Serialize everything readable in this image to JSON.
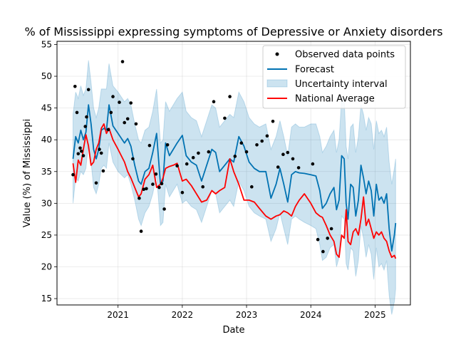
{
  "chart_data": {
    "type": "line",
    "title": "% of Mississippi expressing symptoms of Depressive or Anxiety disorders",
    "xlabel": "Date",
    "ylabel": "Value (%) of Mississippi",
    "xlim": [
      2020.05,
      2025.55
    ],
    "ylim": [
      14,
      55.5
    ],
    "xticks": [
      2021,
      2022,
      2023,
      2024,
      2025
    ],
    "xtick_labels": [
      "2021",
      "2022",
      "2023",
      "2024",
      "2025"
    ],
    "yticks": [
      15,
      20,
      25,
      30,
      35,
      40,
      45,
      50,
      55
    ],
    "ytick_labels": [
      "15",
      "20",
      "25",
      "30",
      "35",
      "40",
      "45",
      "50",
      "55"
    ],
    "grid": true,
    "legend_position": "upper right",
    "legend": [
      "Observed data points",
      "Forecast",
      "Uncertainty interval",
      "National Average"
    ],
    "colors": {
      "observed": "#000000",
      "forecast": "#0072b2",
      "uncertainty": "#0072b2",
      "national": "#ff0000"
    },
    "series": [
      {
        "name": "Observed data points",
        "kind": "scatter",
        "x": [
          2020.3,
          2020.33,
          2020.36,
          2020.38,
          2020.41,
          2020.43,
          2020.46,
          2020.49,
          2020.51,
          2020.54,
          2020.66,
          2020.71,
          2020.74,
          2020.77,
          2020.85,
          2020.89,
          2020.92,
          2021.02,
          2021.07,
          2021.1,
          2021.15,
          2021.2,
          2021.23,
          2021.28,
          2021.33,
          2021.36,
          2021.4,
          2021.44,
          2021.49,
          2021.54,
          2021.59,
          2021.64,
          2021.68,
          2021.72,
          2021.77,
          2021.92,
          2022.0,
          2022.07,
          2022.17,
          2022.25,
          2022.32,
          2022.41,
          2022.49,
          2022.66,
          2022.74,
          2022.82,
          2022.92,
          2023.0,
          2023.08,
          2023.16,
          2023.24,
          2023.32,
          2023.41,
          2023.49,
          2023.57,
          2023.64,
          2023.72,
          2023.81,
          2024.03,
          2024.11,
          2024.19,
          2024.26,
          2024.32
        ],
        "y": [
          34.5,
          48.4,
          44.3,
          37.8,
          38.7,
          38.2,
          37.5,
          42.1,
          43.6,
          47.9,
          33.2,
          38.5,
          37.9,
          35.1,
          41.6,
          44.3,
          46.8,
          45.9,
          52.3,
          42.7,
          43.3,
          45.8,
          37.0,
          42.5,
          30.8,
          25.6,
          32.2,
          32.3,
          39.1,
          33.0,
          34.6,
          32.5,
          33.1,
          29.1,
          39.2,
          35.9,
          31.7,
          36.2,
          37.2,
          37.9,
          32.6,
          38.1,
          46.0,
          43.4,
          46.8,
          37.4,
          39.5,
          38.1,
          32.6,
          39.2,
          39.8,
          40.6,
          42.9,
          35.7,
          37.7,
          38.0,
          37.0,
          35.6,
          36.2,
          24.3,
          22.4,
          24.5,
          26.0
        ]
      },
      {
        "name": "Forecast",
        "kind": "line",
        "x": [
          2020.3,
          2020.34,
          2020.38,
          2020.42,
          2020.46,
          2020.5,
          2020.54,
          2020.58,
          2020.62,
          2020.66,
          2020.7,
          2020.74,
          2020.78,
          2020.82,
          2020.86,
          2020.92,
          2021.0,
          2021.1,
          2021.15,
          2021.2,
          2021.26,
          2021.32,
          2021.36,
          2021.42,
          2021.48,
          2021.54,
          2021.6,
          2021.66,
          2021.7,
          2021.74,
          2021.8,
          2021.86,
          2021.92,
          2022.0,
          2022.06,
          2022.14,
          2022.22,
          2022.3,
          2022.38,
          2022.46,
          2022.52,
          2022.58,
          2022.66,
          2022.74,
          2022.8,
          2022.88,
          2022.96,
          2023.04,
          2023.12,
          2023.2,
          2023.3,
          2023.38,
          2023.46,
          2023.52,
          2023.58,
          2023.64,
          2023.7,
          2023.76,
          2023.82,
          2023.9,
          2024.0,
          2024.08,
          2024.14,
          2024.18,
          2024.24,
          2024.3,
          2024.36,
          2024.4,
          2024.44,
          2024.48,
          2024.52,
          2024.55,
          2024.58,
          2024.62,
          2024.66,
          2024.7,
          2024.74,
          2024.78,
          2024.82,
          2024.86,
          2024.9,
          2024.94,
          2024.98,
          2025.02,
          2025.06,
          2025.1,
          2025.14,
          2025.18,
          2025.22,
          2025.26,
          2025.3,
          2025.32
        ],
        "y": [
          37.0,
          40.5,
          39.5,
          41.5,
          40.0,
          41.2,
          45.5,
          42.5,
          38.5,
          37.0,
          38.5,
          41.5,
          41.8,
          41.5,
          45.5,
          42.2,
          41.0,
          39.5,
          40.2,
          39.0,
          36.0,
          33.5,
          33.0,
          35.0,
          35.5,
          38.0,
          41.0,
          33.0,
          33.5,
          39.5,
          37.5,
          38.5,
          39.5,
          40.7,
          37.5,
          36.5,
          36.0,
          33.5,
          36.0,
          38.5,
          38.0,
          35.0,
          36.0,
          37.0,
          36.5,
          40.5,
          39.0,
          36.5,
          35.5,
          35.0,
          35.0,
          30.8,
          33.0,
          35.5,
          33.0,
          30.2,
          34.5,
          35.0,
          34.8,
          34.7,
          34.5,
          34.3,
          32.0,
          29.2,
          30.0,
          31.5,
          32.5,
          29.0,
          30.5,
          37.5,
          37.0,
          30.0,
          27.5,
          33.0,
          32.5,
          28.0,
          30.5,
          36.0,
          34.0,
          31.5,
          33.5,
          32.0,
          28.0,
          33.0,
          30.5,
          31.0,
          30.0,
          31.5,
          26.0,
          22.5,
          25.0,
          26.9
        ]
      },
      {
        "name": "Uncertainty interval",
        "kind": "band",
        "x": [
          2020.3,
          2020.34,
          2020.38,
          2020.42,
          2020.46,
          2020.5,
          2020.54,
          2020.58,
          2020.62,
          2020.66,
          2020.7,
          2020.74,
          2020.78,
          2020.82,
          2020.86,
          2020.92,
          2021.0,
          2021.1,
          2021.15,
          2021.2,
          2021.26,
          2021.32,
          2021.36,
          2021.42,
          2021.48,
          2021.54,
          2021.6,
          2021.66,
          2021.7,
          2021.74,
          2021.8,
          2021.86,
          2021.92,
          2022.0,
          2022.06,
          2022.14,
          2022.22,
          2022.3,
          2022.38,
          2022.46,
          2022.52,
          2022.58,
          2022.66,
          2022.74,
          2022.8,
          2022.88,
          2022.96,
          2023.04,
          2023.12,
          2023.2,
          2023.3,
          2023.38,
          2023.46,
          2023.52,
          2023.58,
          2023.64,
          2023.7,
          2023.76,
          2023.82,
          2023.9,
          2024.0,
          2024.08,
          2024.14,
          2024.18,
          2024.24,
          2024.3,
          2024.36,
          2024.4,
          2024.44,
          2024.48,
          2024.52,
          2024.55,
          2024.58,
          2024.62,
          2024.66,
          2024.7,
          2024.74,
          2024.78,
          2024.82,
          2024.86,
          2024.9,
          2024.94,
          2024.98,
          2025.02,
          2025.06,
          2025.1,
          2025.14,
          2025.18,
          2025.22,
          2025.26,
          2025.3,
          2025.32
        ],
        "lower": [
          30.0,
          34.0,
          33.5,
          35.0,
          34.5,
          35.5,
          39.5,
          36.5,
          32.5,
          31.5,
          33.0,
          35.5,
          36.0,
          35.5,
          39.5,
          36.5,
          35.0,
          34.0,
          34.5,
          33.0,
          30.5,
          27.5,
          26.5,
          28.5,
          29.5,
          31.5,
          34.5,
          26.5,
          27.0,
          33.0,
          31.0,
          32.0,
          33.0,
          30.0,
          30.5,
          29.5,
          29.0,
          27.0,
          29.5,
          32.0,
          31.5,
          28.5,
          29.5,
          30.5,
          29.5,
          33.5,
          32.0,
          29.5,
          28.5,
          28.0,
          27.5,
          24.0,
          26.0,
          28.5,
          26.0,
          23.5,
          27.5,
          28.0,
          27.5,
          27.0,
          26.5,
          26.0,
          23.5,
          21.0,
          21.5,
          23.0,
          23.5,
          20.0,
          21.5,
          28.0,
          27.5,
          20.5,
          19.5,
          23.0,
          22.5,
          18.5,
          21.0,
          26.5,
          24.5,
          21.5,
          23.5,
          22.0,
          18.0,
          23.0,
          20.0,
          20.5,
          19.5,
          21.0,
          15.5,
          12.5,
          14.5,
          16.5
        ],
        "upper": [
          44.0,
          47.5,
          46.5,
          48.5,
          47.0,
          48.0,
          52.5,
          49.0,
          45.0,
          43.5,
          45.0,
          48.0,
          48.0,
          48.0,
          52.0,
          48.5,
          47.5,
          46.0,
          46.5,
          45.5,
          42.5,
          40.0,
          39.5,
          41.5,
          42.0,
          44.5,
          48.0,
          39.5,
          40.0,
          46.0,
          44.5,
          45.5,
          46.5,
          47.5,
          44.5,
          43.5,
          43.0,
          40.5,
          43.0,
          45.5,
          45.0,
          42.0,
          43.0,
          44.0,
          43.5,
          47.5,
          46.0,
          43.5,
          42.5,
          42.0,
          42.5,
          38.5,
          40.5,
          43.0,
          40.5,
          37.5,
          42.0,
          42.5,
          42.0,
          42.0,
          42.5,
          42.5,
          40.5,
          38.0,
          39.0,
          40.5,
          41.5,
          38.0,
          40.0,
          46.5,
          46.5,
          39.0,
          37.0,
          42.0,
          42.5,
          38.0,
          40.5,
          45.5,
          44.0,
          41.5,
          43.5,
          42.5,
          38.5,
          43.0,
          41.0,
          41.5,
          40.5,
          42.0,
          36.5,
          33.0,
          35.5,
          37.0
        ]
      },
      {
        "name": "National Average",
        "kind": "line",
        "x": [
          2020.3,
          2020.34,
          2020.38,
          2020.42,
          2020.46,
          2020.5,
          2020.54,
          2020.58,
          2020.62,
          2020.66,
          2020.7,
          2020.74,
          2020.78,
          2020.82,
          2020.86,
          2020.92,
          2021.0,
          2021.1,
          2021.15,
          2021.2,
          2021.26,
          2021.32,
          2021.36,
          2021.42,
          2021.48,
          2021.54,
          2021.6,
          2021.66,
          2021.7,
          2021.74,
          2021.8,
          2021.86,
          2021.92,
          2022.0,
          2022.06,
          2022.14,
          2022.22,
          2022.3,
          2022.38,
          2022.46,
          2022.52,
          2022.58,
          2022.66,
          2022.74,
          2022.8,
          2022.88,
          2022.96,
          2023.04,
          2023.12,
          2023.2,
          2023.3,
          2023.38,
          2023.46,
          2023.52,
          2023.58,
          2023.64,
          2023.7,
          2023.76,
          2023.82,
          2023.9,
          2024.0,
          2024.08,
          2024.14,
          2024.18,
          2024.24,
          2024.3,
          2024.36,
          2024.4,
          2024.44,
          2024.48,
          2024.52,
          2024.55,
          2024.58,
          2024.62,
          2024.66,
          2024.7,
          2024.74,
          2024.78,
          2024.82,
          2024.86,
          2024.9,
          2024.94,
          2024.98,
          2025.02,
          2025.06,
          2025.1,
          2025.14,
          2025.18,
          2025.22,
          2025.26,
          2025.3,
          2025.32
        ],
        "y": [
          36.3,
          33.3,
          36.8,
          36.0,
          38.5,
          40.8,
          39.0,
          36.0,
          36.5,
          38.5,
          39.5,
          41.8,
          42.5,
          41.0,
          41.8,
          40.0,
          38.5,
          36.5,
          35.0,
          34.0,
          32.5,
          31.0,
          31.5,
          33.8,
          34.5,
          36.0,
          32.5,
          33.0,
          34.0,
          35.5,
          35.8,
          36.0,
          36.3,
          33.5,
          33.8,
          32.8,
          31.5,
          30.2,
          30.5,
          32.0,
          31.5,
          32.0,
          32.5,
          37.0,
          35.0,
          33.0,
          30.5,
          30.5,
          30.2,
          29.2,
          28.0,
          27.5,
          28.0,
          28.2,
          28.8,
          28.5,
          28.0,
          29.5,
          30.5,
          31.5,
          30.0,
          28.5,
          28.0,
          27.8,
          26.5,
          25.0,
          24.0,
          22.0,
          21.5,
          25.0,
          24.5,
          29.0,
          24.0,
          23.5,
          25.5,
          26.0,
          25.0,
          27.5,
          31.0,
          26.5,
          27.5,
          26.0,
          24.5,
          25.5,
          25.0,
          25.5,
          24.5,
          24.0,
          22.5,
          21.5,
          21.8,
          21.3
        ]
      }
    ]
  }
}
